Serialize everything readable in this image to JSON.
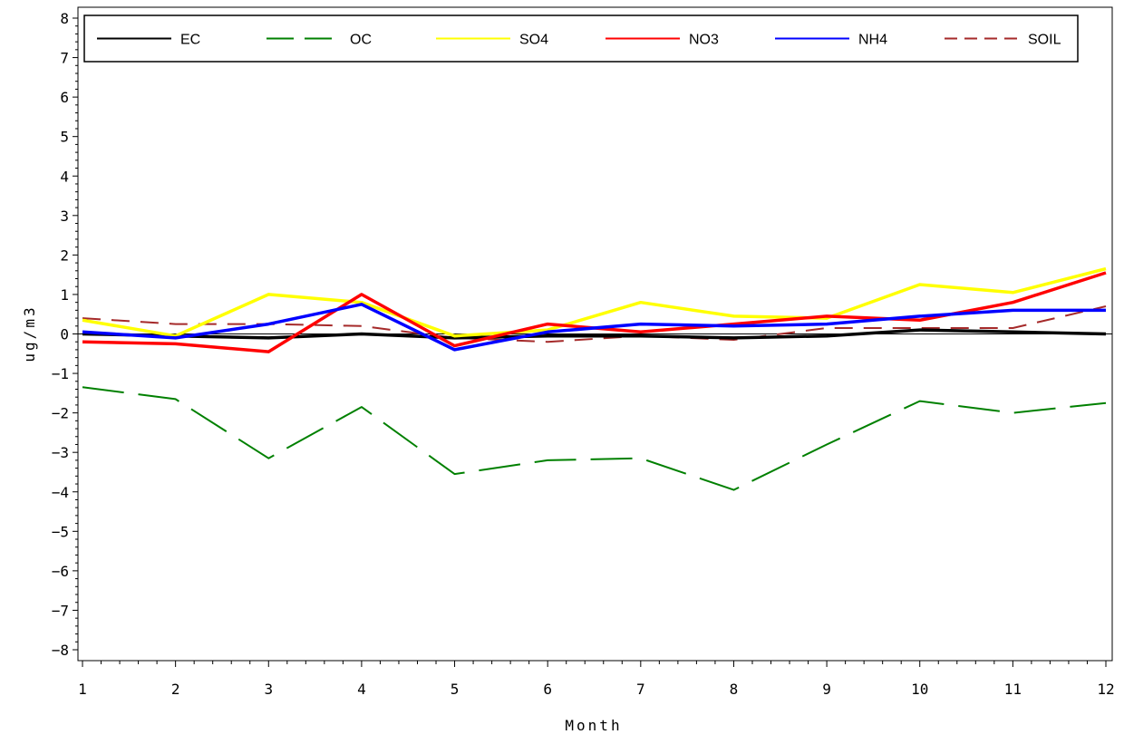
{
  "chart_data": {
    "type": "line",
    "xlabel": "Month",
    "ylabel": "ug/m3",
    "x": [
      1,
      2,
      3,
      4,
      5,
      6,
      7,
      8,
      9,
      10,
      11,
      12
    ],
    "xticks": [
      "1",
      "2",
      "3",
      "4",
      "5",
      "6",
      "7",
      "8",
      "9",
      "10",
      "11",
      "12"
    ],
    "xlim": [
      1,
      12
    ],
    "ylim": [
      -8,
      8
    ],
    "yticks": [
      "-8",
      "-7",
      "-6",
      "-5",
      "-4",
      "-3",
      "-2",
      "-1",
      "0",
      "1",
      "2",
      "3",
      "4",
      "5",
      "6",
      "7",
      "8"
    ],
    "zero_reference_line": true,
    "grid": false,
    "legend_position": "top",
    "series": [
      {
        "name": "EC",
        "color": "#000000",
        "dash": "solid",
        "values": [
          0.0,
          -0.05,
          -0.1,
          0.0,
          -0.1,
          -0.05,
          -0.05,
          -0.1,
          -0.05,
          0.1,
          0.05,
          0.0
        ]
      },
      {
        "name": "OC",
        "color": "#008000",
        "dash": "long",
        "values": [
          -1.35,
          -1.65,
          -3.15,
          -1.85,
          -3.55,
          -3.2,
          -3.15,
          -3.95,
          -2.8,
          -1.7,
          -2.0,
          -1.75
        ]
      },
      {
        "name": "SO4",
        "color": "#ffff00",
        "dash": "solid",
        "values": [
          0.35,
          -0.05,
          1.0,
          0.8,
          -0.05,
          0.1,
          0.8,
          0.45,
          0.4,
          1.25,
          1.05,
          1.65
        ]
      },
      {
        "name": "NO3",
        "color": "#ff0000",
        "dash": "solid",
        "values": [
          -0.2,
          -0.25,
          -0.45,
          1.0,
          -0.3,
          0.25,
          0.05,
          0.25,
          0.45,
          0.35,
          0.8,
          1.55
        ]
      },
      {
        "name": "NH4",
        "color": "#0000ff",
        "dash": "solid",
        "values": [
          0.05,
          -0.1,
          0.25,
          0.75,
          -0.4,
          0.05,
          0.25,
          0.2,
          0.25,
          0.45,
          0.6,
          0.6
        ]
      },
      {
        "name": "SOIL",
        "color": "#a52a2a",
        "dash": "medium",
        "values": [
          0.4,
          0.25,
          0.25,
          0.2,
          -0.1,
          -0.2,
          -0.05,
          -0.15,
          0.15,
          0.15,
          0.15,
          0.7
        ]
      }
    ]
  }
}
